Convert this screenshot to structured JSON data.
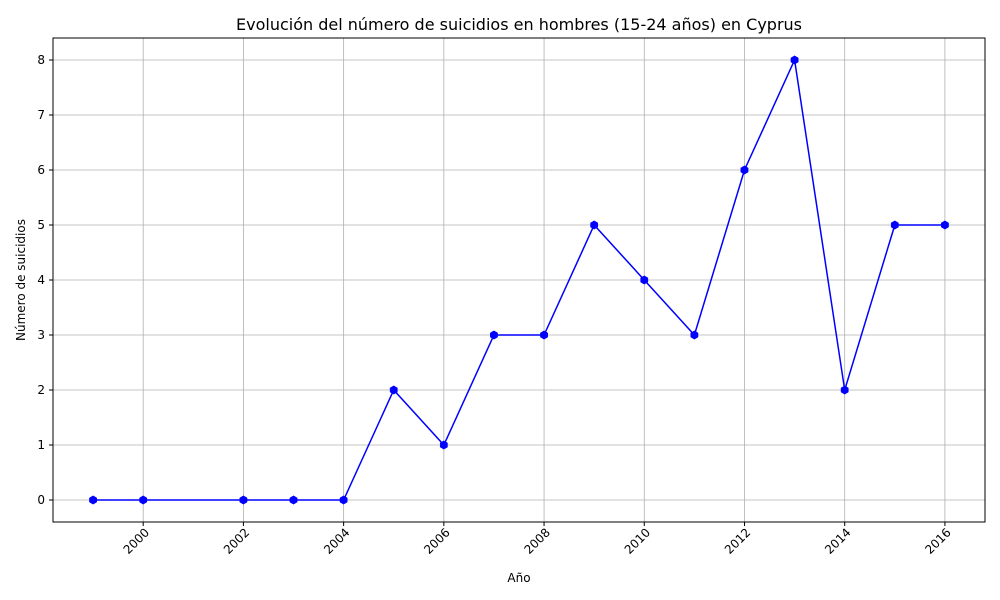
{
  "chart_data": {
    "type": "line",
    "title": "Evolución del número de suicidios en hombres (15-24 años) en Cyprus",
    "xlabel": "Año",
    "ylabel": "Número de suicidios",
    "xlim": [
      1998.2,
      2016.8
    ],
    "ylim": [
      -0.4,
      8.4
    ],
    "xticks": [
      2000,
      2002,
      2004,
      2006,
      2008,
      2010,
      2012,
      2014,
      2016
    ],
    "yticks": [
      0,
      1,
      2,
      3,
      4,
      5,
      6,
      7,
      8
    ],
    "grid": true,
    "x_tick_rotation": 45,
    "series": [
      {
        "color": "#0000ff",
        "marker": "hexagon",
        "x": [
          1999,
          2000,
          2002,
          2003,
          2004,
          2005,
          2006,
          2007,
          2008,
          2009,
          2010,
          2011,
          2012,
          2013,
          2014,
          2015,
          2016
        ],
        "y": [
          0,
          0,
          0,
          0,
          0,
          2,
          1,
          3,
          3,
          5,
          4,
          3,
          6,
          8,
          2,
          5,
          5
        ]
      }
    ]
  }
}
